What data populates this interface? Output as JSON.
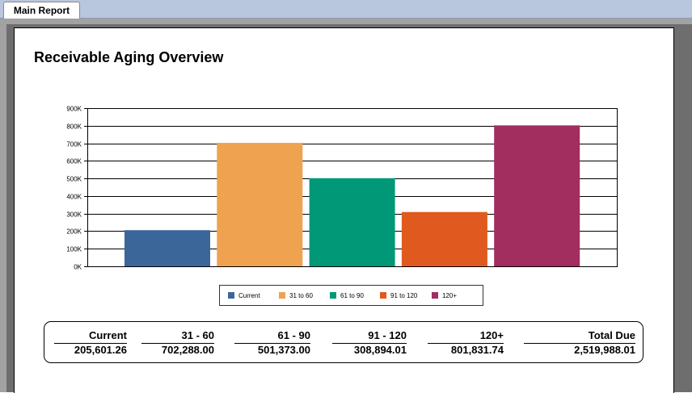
{
  "tabs": [
    {
      "label": "Main Report",
      "active": true
    }
  ],
  "report": {
    "title": "Receivable Aging Overview"
  },
  "chart_data": {
    "type": "bar",
    "title": "",
    "xlabel": "",
    "ylabel": "",
    "categories": [
      "Current",
      "31 to 60",
      "61 to 90",
      "91 to 120",
      "120+"
    ],
    "values": [
      205601.26,
      702288.0,
      501373.0,
      308894.01,
      801831.74
    ],
    "colors": [
      "#3b6699",
      "#efa24f",
      "#009877",
      "#e05a1f",
      "#a22d5f"
    ],
    "ylim": [
      0,
      900000
    ],
    "y_ticks": [
      0,
      100000,
      200000,
      300000,
      400000,
      500000,
      600000,
      700000,
      800000,
      900000
    ],
    "y_tick_labels": [
      "0K",
      "100K",
      "200K",
      "300K",
      "400K",
      "500K",
      "600K",
      "700K",
      "800K",
      "900K"
    ],
    "grid": true,
    "legend": "bottom"
  },
  "legend": {
    "items": [
      {
        "label": "Current",
        "color": "#3b6699"
      },
      {
        "label": "31 to 60",
        "color": "#efa24f"
      },
      {
        "label": "61 to 90",
        "color": "#009877"
      },
      {
        "label": "91 to 120",
        "color": "#e05a1f"
      },
      {
        "label": "120+",
        "color": "#a22d5f"
      }
    ]
  },
  "summary": {
    "columns": [
      {
        "label": "Current",
        "value": "205,601.26"
      },
      {
        "label": "31 - 60",
        "value": "702,288.00"
      },
      {
        "label": "61 - 90",
        "value": "501,373.00"
      },
      {
        "label": "91 - 120",
        "value": "308,894.01"
      },
      {
        "label": "120+",
        "value": "801,831.74"
      },
      {
        "label": "Total Due",
        "value": "2,519,988.01"
      }
    ]
  }
}
